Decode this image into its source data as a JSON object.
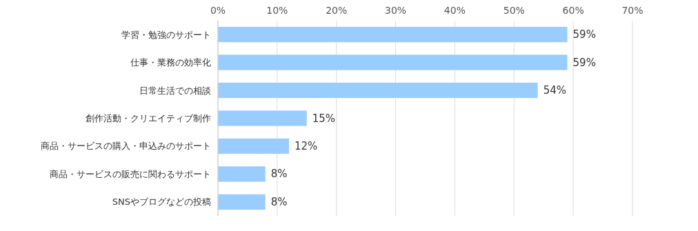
{
  "chart_data": {
    "type": "bar",
    "orientation": "horizontal",
    "categories": [
      "学習・勉強のサポート",
      "仕事・業務の効率化",
      "日常生活での相談",
      "創作活動・クリエイティブ制作",
      "商品・サービスの購入・申込みのサポート",
      "商品・サービスの販売に関わるサポート",
      "SNSやブログなどの投稿"
    ],
    "values": [
      59,
      59,
      54,
      15,
      12,
      8,
      8
    ],
    "value_labels": [
      "59%",
      "59%",
      "54%",
      "15%",
      "12%",
      "8%",
      "8%"
    ],
    "color": "#99ccff",
    "xlim": [
      0,
      70
    ],
    "xticks": [
      {
        "value": 0,
        "label": "0%"
      },
      {
        "value": 10,
        "label": "10%"
      },
      {
        "value": 20,
        "label": "20%"
      },
      {
        "value": 30,
        "label": "30%"
      },
      {
        "value": 40,
        "label": "40%"
      },
      {
        "value": 50,
        "label": "50%"
      },
      {
        "value": 60,
        "label": "60%"
      },
      {
        "value": 70,
        "label": "70%"
      }
    ],
    "grid": "x"
  }
}
